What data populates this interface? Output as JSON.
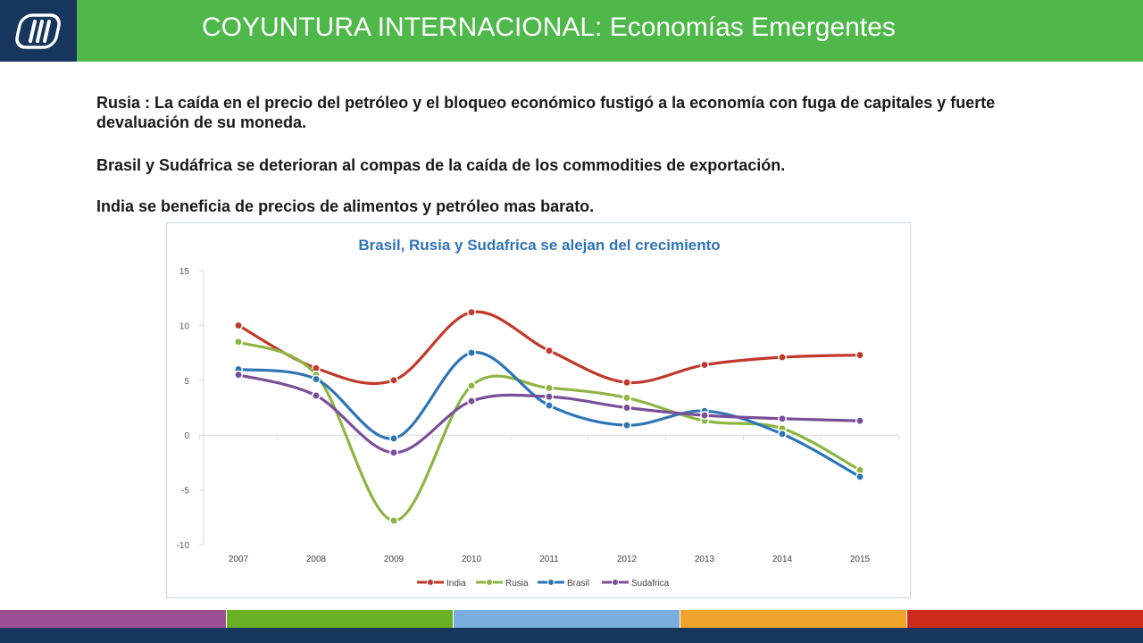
{
  "header": {
    "title": "COYUNTURA INTERNACIONAL: Economías Emergentes",
    "brand_color": "#4fb84a",
    "logo_color": "#17365d"
  },
  "paragraphs": [
    "Rusia : La caída en el precio del petróleo y el bloqueo económico fustigó a la economía con fuga de capitales y fuerte devaluación de su moneda.",
    "Brasil y Sudáfrica se deterioran al compas de la caída de los commodities de exportación.",
    "India se beneficia de precios de alimentos y petróleo mas barato."
  ],
  "chart_data": {
    "type": "line",
    "title": "Brasil, Rusia y Sudafrica se alejan del crecimiento",
    "categories": [
      "2007",
      "2008",
      "2009",
      "2010",
      "2011",
      "2012",
      "2013",
      "2014",
      "2015"
    ],
    "ylim": [
      -10,
      15
    ],
    "yticks": [
      15,
      10,
      5,
      0,
      -5,
      -10
    ],
    "legend_position": "bottom",
    "grid": false,
    "series": [
      {
        "name": "India",
        "color": "#c0392b",
        "values": [
          10.0,
          6.1,
          5.0,
          11.2,
          7.7,
          4.8,
          6.4,
          7.1,
          7.3
        ]
      },
      {
        "name": "Rusia",
        "color": "#8db543",
        "values": [
          8.5,
          5.5,
          -7.8,
          4.5,
          4.3,
          3.4,
          1.3,
          0.6,
          -3.2
        ]
      },
      {
        "name": "Brasil",
        "color": "#2e75b6",
        "values": [
          6.0,
          5.1,
          -0.3,
          7.5,
          2.7,
          0.9,
          2.2,
          0.1,
          -3.8
        ]
      },
      {
        "name": "Sudafrica",
        "color": "#7a4f9a",
        "values": [
          5.5,
          3.6,
          -1.6,
          3.1,
          3.5,
          2.5,
          1.8,
          1.5,
          1.3
        ]
      }
    ]
  },
  "footer": {
    "colors": [
      "#9b4e94",
      "#6ab023",
      "#7aaedc",
      "#f0a52a",
      "#cc2a1a"
    ],
    "band_color": "#17365d"
  }
}
